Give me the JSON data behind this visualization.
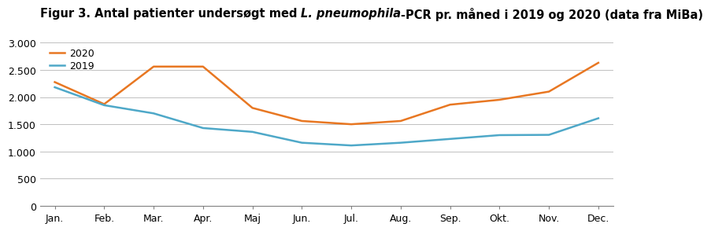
{
  "title_part1": "Figur 3. Antal patienter undersøgt med ",
  "title_part2": "L. pneumophila",
  "title_part3": "-PCR pr. måned i 2019 og 2020 (data fra MiBa)",
  "months": [
    "Jan.",
    "Feb.",
    "Mar.",
    "Apr.",
    "Maj",
    "Jun.",
    "Jul.",
    "Aug.",
    "Sep.",
    "Okt.",
    "Nov.",
    "Dec."
  ],
  "data_2020": [
    2275,
    1870,
    2560,
    2560,
    1800,
    1560,
    1500,
    1560,
    1860,
    1950,
    2100,
    2630
  ],
  "data_2019": [
    2180,
    1850,
    1700,
    1430,
    1360,
    1160,
    1110,
    1160,
    1230,
    1300,
    1305,
    1610
  ],
  "color_2020": "#E87722",
  "color_2019": "#4EA8C8",
  "ylim": [
    0,
    3000
  ],
  "yticks": [
    0,
    500,
    1000,
    1500,
    2000,
    2500,
    3000
  ],
  "ytick_labels": [
    "0",
    "500",
    "1.000",
    "1.500",
    "2.000",
    "2.500",
    "3.000"
  ],
  "legend_2020": "2020",
  "legend_2019": "2019",
  "title_fontsize": 10.5,
  "axis_fontsize": 9,
  "legend_fontsize": 9,
  "line_width": 1.8,
  "background_color": "#ffffff",
  "grid_color": "#c0c0c0"
}
